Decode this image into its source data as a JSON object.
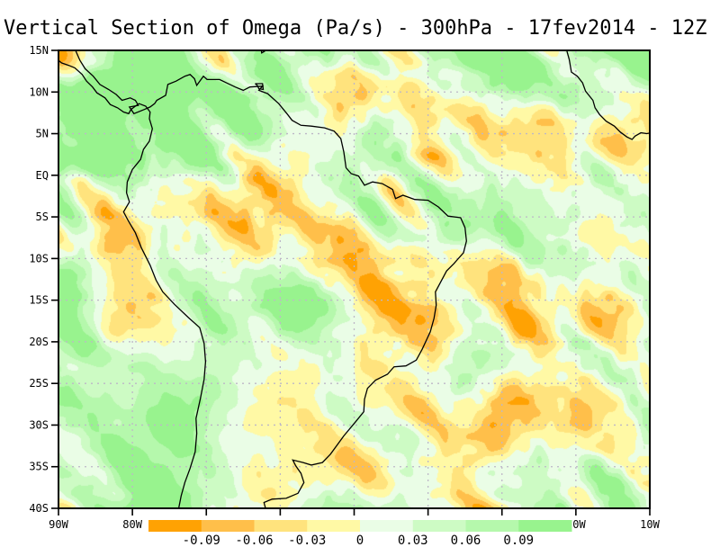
{
  "title": "Vertical Section of Omega (Pa/s) - 300hPa - 17fev2014 - 12Z",
  "chart_data": {
    "type": "heatmap",
    "title": "Vertical Section of Omega (Pa/s) - 300hPa - 17fev2014 - 12Z",
    "variable": "Omega",
    "units": "Pa/s",
    "level": "300hPa",
    "datetime": "17fev2014 12Z",
    "x_tick_labels": [
      "90W",
      "80W",
      "70W",
      "60W",
      "50W",
      "40W",
      "30W",
      "20W",
      "10W"
    ],
    "y_tick_labels": [
      "15N",
      "10N",
      "5N",
      "EQ",
      "5S",
      "10S",
      "15S",
      "20S",
      "25S",
      "30S",
      "35S",
      "40S"
    ],
    "xlim_deg_lon": [
      -90,
      -10
    ],
    "ylim_deg_lat": [
      -40,
      15
    ],
    "grid": "dotted, every 10 deg lon / 5 deg lat",
    "legend_position": "bottom",
    "legend_thresholds": [
      -0.09,
      -0.06,
      -0.03,
      0,
      0.03,
      0.06,
      0.09
    ],
    "legend_colors": [
      "#ffa203",
      "#ffbf4a",
      "#ffe37d",
      "#fff9a5",
      "#eafde6",
      "#cdfbc4",
      "#b5f8ac",
      "#98f38e"
    ]
  },
  "map": {
    "lat_range": [
      15,
      -40
    ],
    "lon_range": [
      -90,
      -10
    ],
    "lat_ticks": [
      {
        "value": 15,
        "label": "15N"
      },
      {
        "value": 10,
        "label": "10N"
      },
      {
        "value": 5,
        "label": "5N"
      },
      {
        "value": 0,
        "label": "EQ"
      },
      {
        "value": -5,
        "label": "5S"
      },
      {
        "value": -10,
        "label": "10S"
      },
      {
        "value": -15,
        "label": "15S"
      },
      {
        "value": -20,
        "label": "20S"
      },
      {
        "value": -25,
        "label": "25S"
      },
      {
        "value": -30,
        "label": "30S"
      },
      {
        "value": -35,
        "label": "35S"
      },
      {
        "value": -40,
        "label": "40S"
      }
    ],
    "lon_ticks": [
      {
        "value": -90,
        "label": "90W"
      },
      {
        "value": -80,
        "label": "80W"
      },
      {
        "value": -70,
        "label": "70W"
      },
      {
        "value": -60,
        "label": "60W"
      },
      {
        "value": -50,
        "label": "50W"
      },
      {
        "value": -40,
        "label": "40W"
      },
      {
        "value": -30,
        "label": "30W"
      },
      {
        "value": -20,
        "label": "20W"
      },
      {
        "value": -10,
        "label": "10W"
      }
    ],
    "grid_color": "#bdb7c7",
    "coast_color": "#000000",
    "frame_color": "#000000"
  },
  "colorbar": {
    "labels": [
      "-0.09",
      "-0.06",
      "-0.03",
      "0",
      "0.03",
      "0.06",
      "0.09"
    ],
    "thresholds": [
      -0.09,
      -0.06,
      -0.03,
      0,
      0.03,
      0.06,
      0.09
    ],
    "colors": [
      "#ffa203",
      "#ffbf4a",
      "#ffe37d",
      "#fff9a5",
      "#eafde6",
      "#cdfbc4",
      "#b5f8ac",
      "#98f38e"
    ]
  },
  "field": {
    "seed1": 101,
    "seed2": 202,
    "seed3": 303,
    "mean": 0.05,
    "amp_large": 0.125,
    "amp_medium": 0.105,
    "amp_small": 0.026,
    "scale_large": 92,
    "scale_medium_u": 64,
    "scale_medium_w": 30,
    "scale_small": 13
  },
  "coastlines": [
    [
      [
        -87.8,
        15.2
      ],
      [
        -87.1,
        13.8
      ],
      [
        -86.4,
        12.8
      ],
      [
        -85.3,
        11.9
      ],
      [
        -84.4,
        10.9
      ],
      [
        -83.2,
        10.3
      ],
      [
        -82.2,
        9.7
      ],
      [
        -81.4,
        9.0
      ],
      [
        -80.3,
        9.3
      ],
      [
        -79.6,
        9.0
      ],
      [
        -79.2,
        8.4
      ],
      [
        -80.4,
        8.2
      ],
      [
        -79.8,
        7.4
      ],
      [
        -78.4,
        7.9
      ],
      [
        -77.6,
        8.2
      ],
      [
        -77.0,
        8.6
      ],
      [
        -76.7,
        9.0
      ],
      [
        -75.5,
        9.6
      ],
      [
        -75.2,
        10.9
      ],
      [
        -74.1,
        11.3
      ],
      [
        -72.9,
        11.9
      ],
      [
        -72.2,
        12.1
      ],
      [
        -71.6,
        11.6
      ],
      [
        -71.3,
        10.8
      ],
      [
        -70.4,
        11.9
      ],
      [
        -69.9,
        11.5
      ],
      [
        -68.2,
        11.5
      ],
      [
        -66.1,
        10.6
      ],
      [
        -65.0,
        10.2
      ],
      [
        -64.1,
        10.6
      ],
      [
        -62.4,
        10.7
      ],
      [
        -62.9,
        10.2
      ],
      [
        -61.7,
        9.8
      ],
      [
        -60.2,
        8.6
      ],
      [
        -59.0,
        7.3
      ],
      [
        -58.4,
        6.6
      ],
      [
        -57.2,
        6.0
      ],
      [
        -55.8,
        5.9
      ],
      [
        -54.0,
        5.7
      ],
      [
        -52.7,
        5.3
      ],
      [
        -51.8,
        4.4
      ],
      [
        -51.4,
        2.8
      ],
      [
        -51.1,
        0.9
      ],
      [
        -50.4,
        0.2
      ],
      [
        -49.4,
        -0.1
      ],
      [
        -48.6,
        -1.2
      ],
      [
        -47.5,
        -0.8
      ],
      [
        -46.2,
        -1.0
      ],
      [
        -44.8,
        -1.7
      ],
      [
        -44.4,
        -2.8
      ],
      [
        -43.4,
        -2.4
      ],
      [
        -41.8,
        -2.9
      ],
      [
        -40.0,
        -3.0
      ],
      [
        -38.6,
        -3.8
      ],
      [
        -37.3,
        -4.9
      ],
      [
        -35.6,
        -5.1
      ],
      [
        -35.0,
        -6.3
      ],
      [
        -34.8,
        -7.9
      ],
      [
        -35.2,
        -9.3
      ],
      [
        -36.5,
        -10.6
      ],
      [
        -37.5,
        -11.5
      ],
      [
        -38.4,
        -13.0
      ],
      [
        -39.0,
        -14.0
      ],
      [
        -38.9,
        -15.6
      ],
      [
        -39.2,
        -17.2
      ],
      [
        -39.7,
        -18.8
      ],
      [
        -40.8,
        -20.9
      ],
      [
        -41.6,
        -22.2
      ],
      [
        -43.0,
        -22.9
      ],
      [
        -44.6,
        -23.0
      ],
      [
        -45.5,
        -23.9
      ],
      [
        -47.1,
        -24.6
      ],
      [
        -48.2,
        -25.6
      ],
      [
        -48.6,
        -26.9
      ],
      [
        -48.7,
        -28.4
      ],
      [
        -49.8,
        -29.6
      ],
      [
        -51.4,
        -31.3
      ],
      [
        -53.2,
        -33.5
      ],
      [
        -54.3,
        -34.5
      ],
      [
        -55.8,
        -34.8
      ],
      [
        -56.9,
        -34.5
      ],
      [
        -58.3,
        -34.2
      ],
      [
        -57.9,
        -34.9
      ],
      [
        -57.2,
        -35.8
      ],
      [
        -56.8,
        -36.9
      ],
      [
        -57.6,
        -38.2
      ],
      [
        -59.2,
        -38.8
      ],
      [
        -61.1,
        -38.9
      ],
      [
        -62.2,
        -39.3
      ],
      [
        -61.9,
        -40.3
      ]
    ],
    [
      [
        -73.8,
        -40.3
      ],
      [
        -73.4,
        -38.5
      ],
      [
        -72.9,
        -36.9
      ],
      [
        -72.2,
        -35.2
      ],
      [
        -71.5,
        -33.2
      ],
      [
        -71.3,
        -31.0
      ],
      [
        -71.4,
        -29.2
      ],
      [
        -70.8,
        -26.8
      ],
      [
        -70.3,
        -24.5
      ],
      [
        -70.1,
        -22.4
      ],
      [
        -70.3,
        -20.2
      ],
      [
        -70.9,
        -18.3
      ],
      [
        -72.4,
        -17.1
      ],
      [
        -74.3,
        -15.5
      ],
      [
        -75.9,
        -14.0
      ],
      [
        -76.8,
        -12.6
      ],
      [
        -77.6,
        -10.8
      ],
      [
        -78.8,
        -8.7
      ],
      [
        -79.6,
        -6.9
      ],
      [
        -80.6,
        -5.4
      ],
      [
        -81.2,
        -4.4
      ],
      [
        -80.4,
        -3.2
      ],
      [
        -80.8,
        -2.1
      ],
      [
        -80.7,
        -0.8
      ],
      [
        -80.0,
        0.7
      ],
      [
        -78.9,
        1.9
      ],
      [
        -78.5,
        3.1
      ],
      [
        -77.7,
        4.1
      ],
      [
        -77.3,
        5.6
      ],
      [
        -77.7,
        6.8
      ],
      [
        -77.6,
        7.6
      ],
      [
        -78.2,
        8.3
      ],
      [
        -79.1,
        8.6
      ],
      [
        -79.6,
        8.3
      ],
      [
        -80.2,
        7.9
      ],
      [
        -80.5,
        7.4
      ],
      [
        -81.2,
        7.6
      ],
      [
        -82.0,
        8.1
      ],
      [
        -83.0,
        8.5
      ],
      [
        -83.7,
        9.3
      ],
      [
        -84.8,
        9.9
      ],
      [
        -85.4,
        10.6
      ],
      [
        -86.2,
        11.3
      ],
      [
        -86.8,
        12.1
      ],
      [
        -87.8,
        12.9
      ],
      [
        -88.6,
        13.2
      ],
      [
        -89.6,
        13.5
      ],
      [
        -90.0,
        13.8
      ]
    ],
    [
      [
        -63.4,
        11.0
      ],
      [
        -62.4,
        11.0
      ],
      [
        -62.3,
        10.3
      ],
      [
        -62.9,
        10.4
      ],
      [
        -63.1,
        10.8
      ],
      [
        -63.4,
        11.0
      ]
    ],
    [
      [
        -62.6,
        15.2
      ],
      [
        -62.5,
        14.7
      ],
      [
        -62.1,
        14.9
      ],
      [
        -62.1,
        15.2
      ]
    ],
    [
      [
        -21.3,
        15.2
      ],
      [
        -20.9,
        13.9
      ],
      [
        -20.6,
        12.4
      ],
      [
        -19.8,
        11.9
      ],
      [
        -19.1,
        11.1
      ],
      [
        -18.7,
        10.1
      ],
      [
        -17.7,
        9.0
      ],
      [
        -17.4,
        8.1
      ],
      [
        -16.8,
        7.3
      ],
      [
        -15.9,
        6.5
      ],
      [
        -14.8,
        5.9
      ],
      [
        -14.0,
        5.2
      ],
      [
        -13.1,
        4.6
      ],
      [
        -12.4,
        4.3
      ],
      [
        -12.0,
        4.7
      ],
      [
        -11.2,
        5.1
      ],
      [
        -10.4,
        5.0
      ],
      [
        -9.8,
        5.1
      ]
    ]
  ]
}
